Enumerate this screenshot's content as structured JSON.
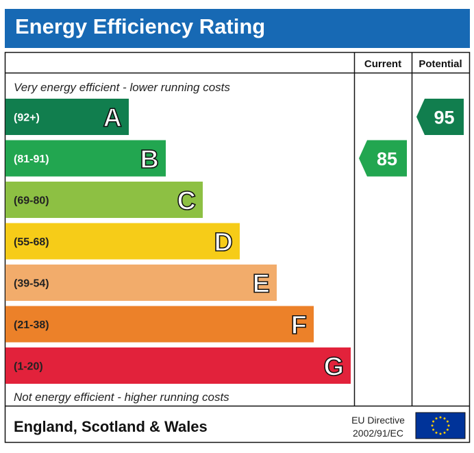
{
  "title": "Energy Efficiency Rating",
  "columns": {
    "current": "Current",
    "potential": "Potential"
  },
  "top_note": "Very energy efficient - lower running costs",
  "bottom_note": "Not energy efficient - higher running costs",
  "footer": {
    "region": "England, Scotland & Wales",
    "directive_line1": "EU Directive",
    "directive_line2": "2002/91/EC"
  },
  "colors": {
    "title_bar": "#1769b4",
    "eu_flag": "#003399",
    "eu_stars": "#ffcc00"
  },
  "chart_data": {
    "type": "bar",
    "title": "Energy Efficiency Rating",
    "categories": [
      "A",
      "B",
      "C",
      "D",
      "E",
      "F",
      "G"
    ],
    "ranges": [
      "(92+)",
      "(81-91)",
      "(69-80)",
      "(55-68)",
      "(39-54)",
      "(21-38)",
      "(1-20)"
    ],
    "range_min": [
      92,
      81,
      69,
      55,
      39,
      21,
      1
    ],
    "colors": [
      "#117e4e",
      "#22a650",
      "#8dc043",
      "#f6cc18",
      "#f2ac6b",
      "#ec8129",
      "#e2223b"
    ],
    "label_colors": [
      "#ffffff",
      "#ffffff",
      "#222222",
      "#222222",
      "#222222",
      "#222222",
      "#222222"
    ],
    "current": {
      "value": 85,
      "band": "B",
      "color": "#22a650"
    },
    "potential": {
      "value": 95,
      "band": "A",
      "color": "#117e4e"
    }
  }
}
